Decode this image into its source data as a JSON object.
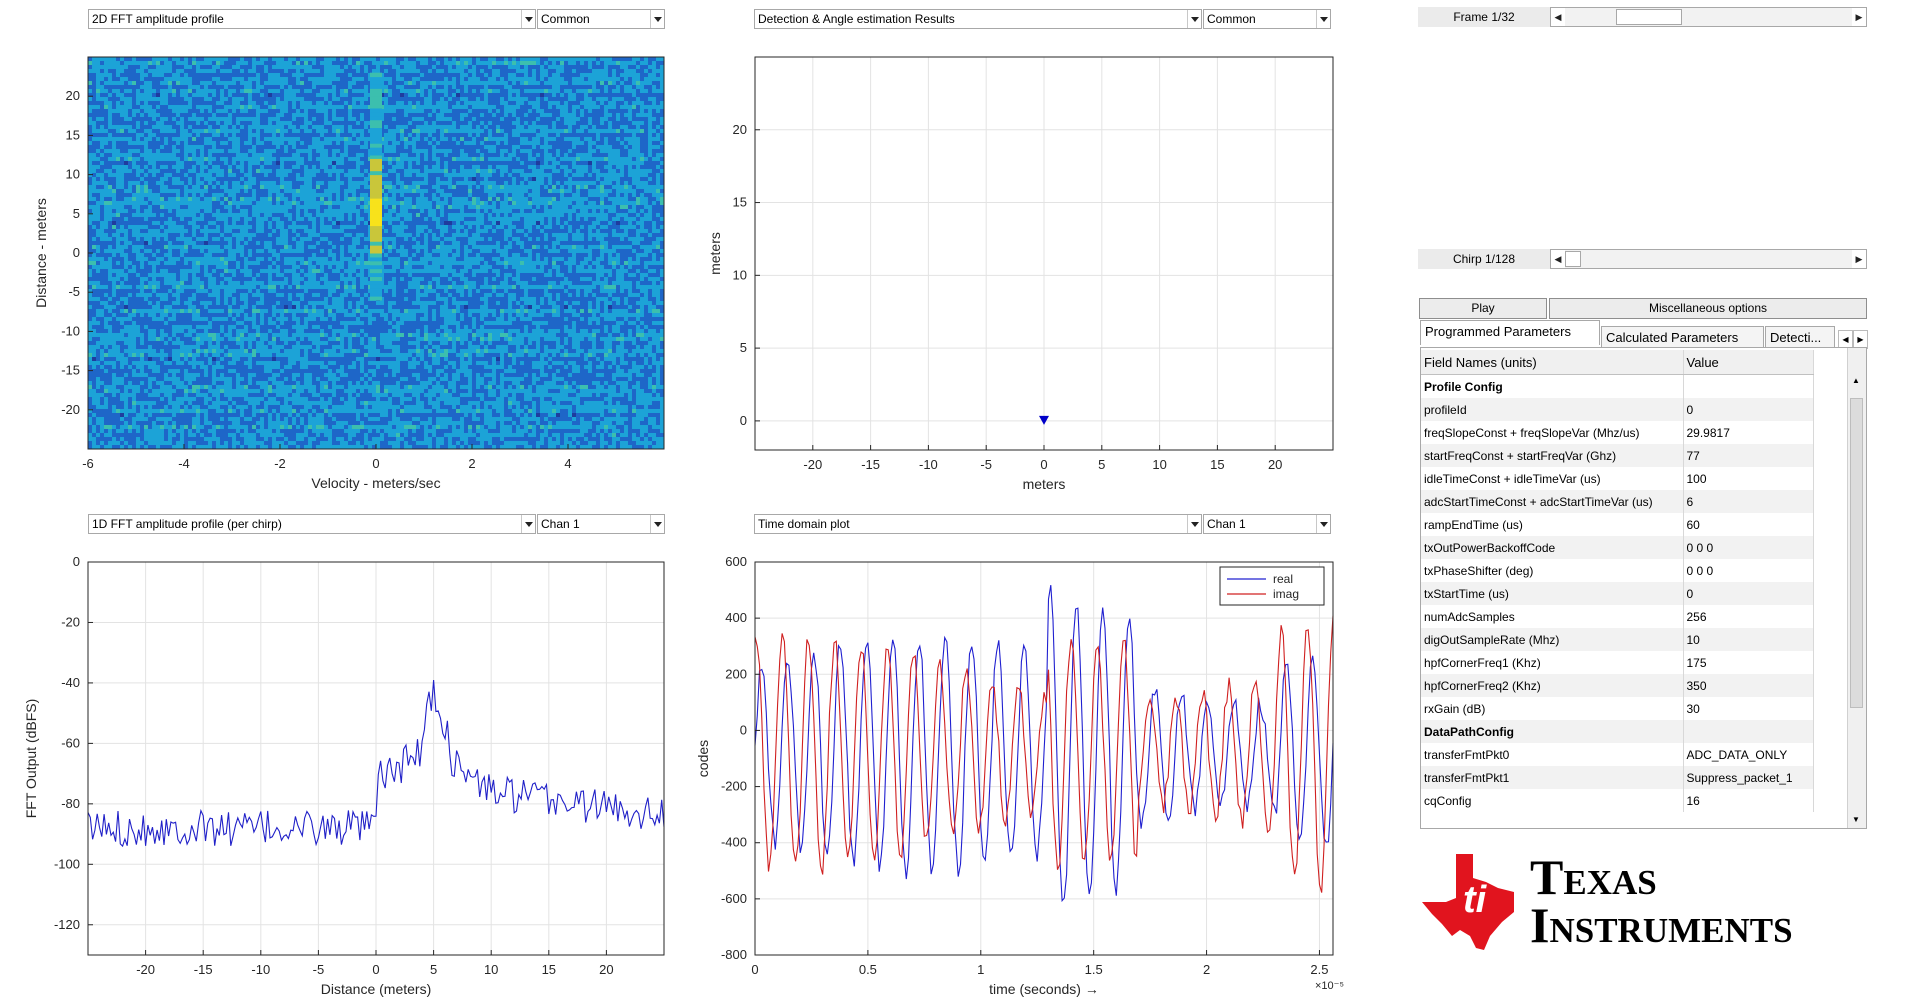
{
  "panels": {
    "top_left": {
      "dropdown": "2D FFT amplitude profile",
      "mode": "Common"
    },
    "top_right": {
      "dropdown": "Detection & Angle estimation Results",
      "mode": "Common"
    },
    "bottom_left": {
      "dropdown": "1D FFT amplitude profile (per chirp)",
      "mode": "Chan 1"
    },
    "bottom_right": {
      "dropdown": "Time domain plot",
      "mode": "Chan 1"
    }
  },
  "chart_data": [
    {
      "id": "range_doppler",
      "type": "heatmap",
      "xlabel": "Velocity - meters/sec",
      "ylabel": "Distance - meters",
      "xlim": [
        -6,
        6
      ],
      "ylim": [
        -25,
        25
      ],
      "xticks": [
        -6,
        -4,
        -2,
        0,
        2,
        4
      ],
      "yticks": [
        20,
        15,
        10,
        5,
        0,
        -5,
        -10,
        -15,
        -20
      ],
      "colormap": [
        "#1f3c9e",
        "#1e66c8",
        "#1ca3d7",
        "#3cbfae",
        "#c9c63a",
        "#f8e21b"
      ],
      "hot_stripe": {
        "velocity": 0,
        "distance_range": [
          0,
          12
        ],
        "peak_distance": 5
      },
      "faint_stripe": {
        "velocity": 0,
        "distance_range": [
          -6,
          23
        ]
      }
    },
    {
      "id": "detections",
      "type": "scatter",
      "xlabel": "meters",
      "ylabel": "meters",
      "xlim": [
        -25,
        25
      ],
      "ylim": [
        -2,
        25
      ],
      "xticks": [
        -20,
        -15,
        -10,
        -5,
        0,
        5,
        10,
        15,
        20
      ],
      "yticks": [
        0,
        5,
        10,
        15,
        20
      ],
      "grid": true,
      "points": [
        {
          "x": 0,
          "y": 0
        }
      ],
      "marker_color": "#0000c8"
    },
    {
      "id": "range_profile",
      "type": "line",
      "xlabel": "Distance (meters)",
      "ylabel": "FFT Output (dBFS)",
      "xlim": [
        -25,
        25
      ],
      "ylim": [
        -130,
        0
      ],
      "xticks": [
        -20,
        -15,
        -10,
        -5,
        0,
        5,
        10,
        15,
        20
      ],
      "yticks": [
        0,
        -20,
        -40,
        -60,
        -80,
        -100,
        -120
      ],
      "grid": true,
      "series": [
        {
          "color": "#2020c8",
          "features": {
            "noise_floor": -88,
            "peak_x": 5,
            "peak_y": -40,
            "rise_x": 0
          }
        }
      ]
    },
    {
      "id": "time_domain",
      "type": "line",
      "xlabel": "time  (seconds) →",
      "ylabel": "codes",
      "xlim": [
        0,
        2.56
      ],
      "ylim": [
        -800,
        600
      ],
      "xticks": [
        0,
        0.5,
        1,
        1.5,
        2,
        2.5
      ],
      "xtick_labels": [
        "0",
        "0.5",
        "1",
        "1.5",
        "2",
        "2.5"
      ],
      "yticks": [
        600,
        400,
        200,
        0,
        -200,
        -400,
        -600,
        -800
      ],
      "x_exponent": "×10⁻⁵",
      "grid": true,
      "legend": "top-right",
      "series": [
        {
          "name": "real",
          "color": "#2020d0"
        },
        {
          "name": "imag",
          "color": "#d02020"
        }
      ]
    }
  ],
  "controls": {
    "frame_label": "Frame 1/32",
    "frame_position": 0.23,
    "chirp_label": "Chirp 1/128",
    "chirp_position": 0.0,
    "play_label": "Play",
    "misc_label": "Miscellaneous options"
  },
  "tabs": [
    "Programmed Parameters",
    "Calculated Parameters",
    "Detecti..."
  ],
  "params": {
    "col_field": "Field Names    (units)",
    "col_value": "Value",
    "rows": [
      {
        "field": "Profile Config",
        "value": "",
        "bold": true
      },
      {
        "field": "profileId",
        "value": "0"
      },
      {
        "field": "freqSlopeConst + freqSlopeVar (Mhz/us)",
        "value": "29.9817"
      },
      {
        "field": "startFreqConst + startFreqVar (Ghz)",
        "value": "77"
      },
      {
        "field": "idleTimeConst + idleTimeVar (us)",
        "value": "100"
      },
      {
        "field": "adcStartTimeConst + adcStartTimeVar (us)",
        "value": "6"
      },
      {
        "field": "rampEndTime (us)",
        "value": "60"
      },
      {
        "field": "txOutPowerBackoffCode",
        "value": "0 0 0"
      },
      {
        "field": "txPhaseShifter (deg)",
        "value": "0 0 0"
      },
      {
        "field": "txStartTime (us)",
        "value": "0"
      },
      {
        "field": "numAdcSamples",
        "value": "256"
      },
      {
        "field": "digOutSampleRate (Mhz)",
        "value": "10"
      },
      {
        "field": "hpfCornerFreq1 (Khz)",
        "value": "175"
      },
      {
        "field": "hpfCornerFreq2 (Khz)",
        "value": "350"
      },
      {
        "field": "rxGain (dB)",
        "value": "30"
      },
      {
        "field": "DataPathConfig",
        "value": "",
        "bold": true
      },
      {
        "field": "transferFmtPkt0",
        "value": "ADC_DATA_ONLY"
      },
      {
        "field": "transferFmtPkt1",
        "value": "Suppress_packet_1"
      },
      {
        "field": "cqConfig",
        "value": "16"
      }
    ]
  },
  "logo": {
    "line1": "Texas",
    "line2": "Instruments",
    "color": "#e1141e"
  }
}
